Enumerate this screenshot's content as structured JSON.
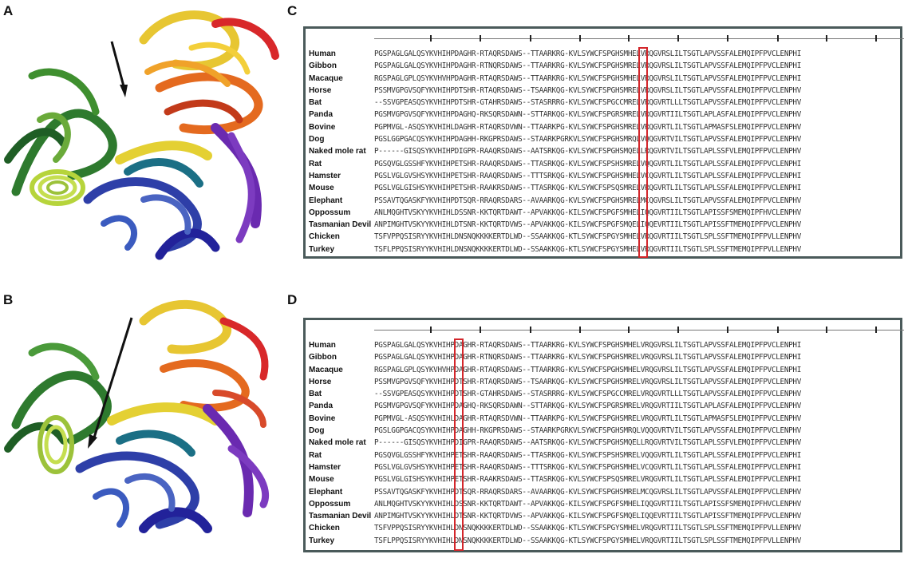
{
  "panels": {
    "A": "A",
    "B": "B",
    "C": "C",
    "D": "D"
  },
  "alignment": {
    "rows": [
      {
        "species": "Human",
        "seq": "PGSPAGLGALQSYKVHIHPDAGHR-RTAQRSDAWS--TTAARKRG-KVLSYWCFSPGHSMHELVRQGVRSLILTSGTLAPVSSFALEMQIPFPVCLENPHI"
      },
      {
        "species": "Gibbon",
        "seq": "PGSPAGLGALQSYKVHIHPDAGHR-RTNQRSDAWS--TTAARKRG-KVLSYWCFSPGHSMRELVRQGVRSLILTSGTLAPVSSFALEMQIPFPVCLENPHI"
      },
      {
        "species": "Macaque",
        "seq": "RGSPAGLGPLQSYKVHVHPDAGHR-RTAQRSDAWS--TTAARKRG-KVLSYWCFSPGHSMHELVRQGVRSLILTSGTLAPVSSFALEMQIPFPVCLENPHI"
      },
      {
        "species": "Horse",
        "seq": "PSSMVGPGVSQFYKVHIHPDTSHR-RTAQRSDAWS--TSAARKQG-KVLSYWCFSPGHSMRELVRQGVRSLILTSGTLAPVSSFALEMQIPFPVCLENPHV"
      },
      {
        "species": "Bat",
        "seq": "--SSVGPEASQSYKVHIHPDTSHR-GTAHRSDAWS--STASRRRG-KVLSYWCFSPGCCMRELVRQGVRTLLLTSGTLAPVSSFALEMQIPFPVCLENPHV"
      },
      {
        "species": "Panda",
        "seq": "PGSMVGPGVSQFYKVHIHPDAGHQ-RKSQRSDAWN--STTARKQG-KVLSYWCFSPGRSMRELVRQGVRTIILTSGTLAPLASFALEMQIPFPVCLENPHV"
      },
      {
        "species": "Bovine",
        "seq": "PGPMVGL-ASQSYKVHIHLDAGHR-RTAQRSDVWN--TTAARKPG-KVLSYWCFSPGHSMRELVRQGVRTLILTSGTLAPMASFSLEMQIPFPVCLENPHV"
      },
      {
        "species": "Dog",
        "seq": "PGSLGGPGACQSYKVHIHPDAGHH-RKGPRSDAWS--STAARKPGRKVLSYWCFSPGHSMRQLVQQGVRTVILTSGTLAPVSSFALEMQIPFPVCLENPHV"
      },
      {
        "species": "Naked mole rat",
        "seq": "P------GISQSYKVHIHPDIGPR-RAAQRSDAWS--AATSRKQG-KVLSYWCFSPGHSMQELLRQGVRTVILTSGTLAPLSSFVLEMQIPFPVCLENPHV"
      },
      {
        "species": "Rat",
        "seq": "PGSQVGLGSSHFYKVHIHPETSHR-RAAQRSDAWS--TTASRKQG-KVLSYWCFSPSHSMRELVQQGVRTLILTSGTLAPLSSFALEMQIPFPVCLENPHI"
      },
      {
        "species": "Hamster",
        "seq": "PGSLVGLGVSHSYKVHIHPETSHR-RAAQRSDAWS--TTTSRKQG-KVLSYWCFSPGHSMHELVCQGVRTLILTSGTLAPLSSFALEMQIPFPVCLENPHI"
      },
      {
        "species": "Mouse",
        "seq": "PGSLVGLGISHSYKVHIHPETSHR-RAAKRSDAWS--TTASRKQG-KVLSYWCFSPSQSMRELVRQGVRTLILTSGTLAPLSSFALEMQIPFPVCLENPHI"
      },
      {
        "species": "Elephant",
        "seq": "PSSAVTQGASKFYKVHIHPDTSQR-RRAQRSDARS--AVAARKQG-KVLSYWCFSPGHSMRELMCQGVRSLILTSGTLAPVSSFALEMQIPFPVCLENPHV"
      },
      {
        "species": "Oppossum",
        "seq": "ANLMQGHTVSKYYKVHIHLDSSNR-KKTQRTDAWT--APVAKKQG-KILSYWCFSPGFSMHELIQQGVRTIILTSGTLAPISSFSMEMQIPFHVCLENPHV"
      },
      {
        "species": "Tasmanian Devil",
        "seq": "ANPIMGHTVSKYYKVHIHLDTSNR-KKTQRTDVWS--APVAKKQG-KILSYWCFSPGFSMQELIQQEVRTIILTSGTLAPISSFTMEMQIPFPVCLENPHV"
      },
      {
        "species": "Chicken",
        "seq": "TSFVPPQSISRYYKVHIHLDNSNQKKKKERTDLWD--SSAAKKQG-KTLSYWCFSPGYSMHELVRQGVRTIILTSGTLSPLSSFTMEMQIPFPVLLENPHV"
      },
      {
        "species": "Turkey",
        "seq": "TSFLPPQSISRYYKVHIHLDNSNQKKKKERTDLWD--SSAAKKQG-KTLSYWCFSPGYSMHELVRQGVRTIILTSGTLSPLSSFTMEMQIPFPVLLENPHV"
      }
    ]
  },
  "colors": {
    "highlight": "#d3262b",
    "box_border": "#4a5a5a"
  }
}
